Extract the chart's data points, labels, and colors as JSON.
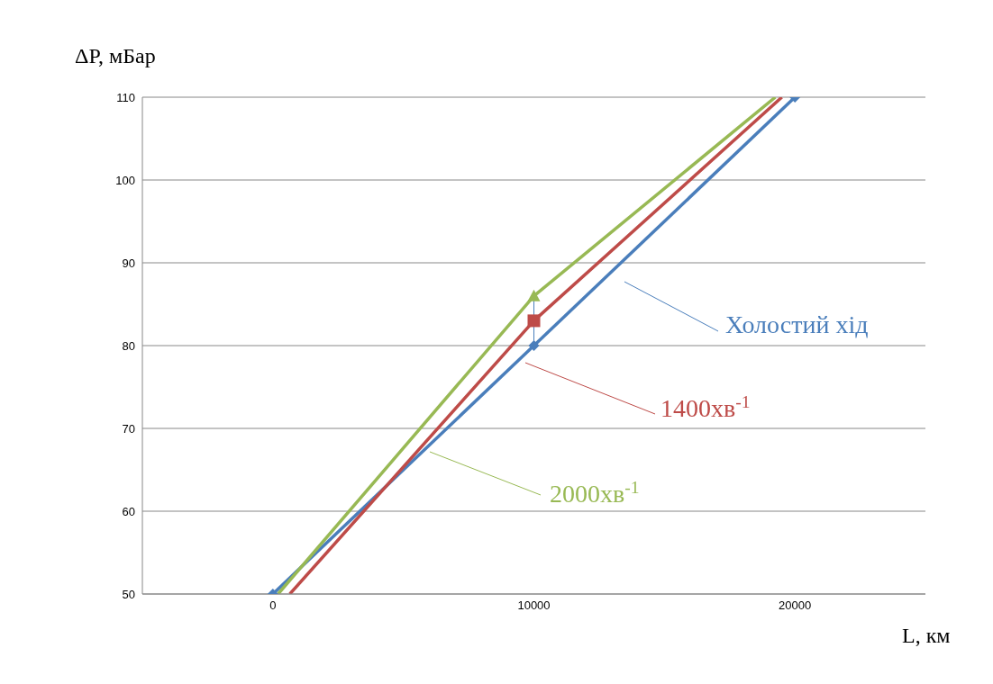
{
  "chart_data": {
    "type": "line",
    "xlabel": "L, км",
    "ylabel": "ΔP, мБар",
    "xlim": [
      -5000,
      25000
    ],
    "xticks": [
      0,
      10000,
      20000
    ],
    "ylim": [
      50,
      110
    ],
    "yticks": [
      50,
      60,
      70,
      80,
      90,
      100,
      110
    ],
    "grid": "y",
    "line_style": "solid",
    "series": [
      {
        "name": "Холостий хід",
        "color": "#4a7ebb",
        "x": [
          0,
          10000,
          20000
        ],
        "values": [
          50,
          80,
          110
        ],
        "marker": "diamond"
      },
      {
        "name": "1400хв$^{-1}$",
        "color": "#be4b48",
        "x": [
          650,
          10000,
          19500
        ],
        "values": [
          50,
          83,
          110
        ],
        "marker": "none"
      },
      {
        "name": "2000хв$^{-1}$",
        "color": "#98b954",
        "x": [
          200,
          10000,
          19250
        ],
        "values": [
          50,
          86,
          110
        ],
        "marker": "none"
      },
      {
        "type": "scatter",
        "color": "#be4b48",
        "x": [
          10000
        ],
        "values": [
          83
        ],
        "marker": "square"
      },
      {
        "type": "scatter",
        "color": "#98b954",
        "x": [
          10000
        ],
        "values": [
          86
        ],
        "marker": "triangle",
        "errors": [
          [
            80,
            86
          ]
        ]
      }
    ]
  }
}
